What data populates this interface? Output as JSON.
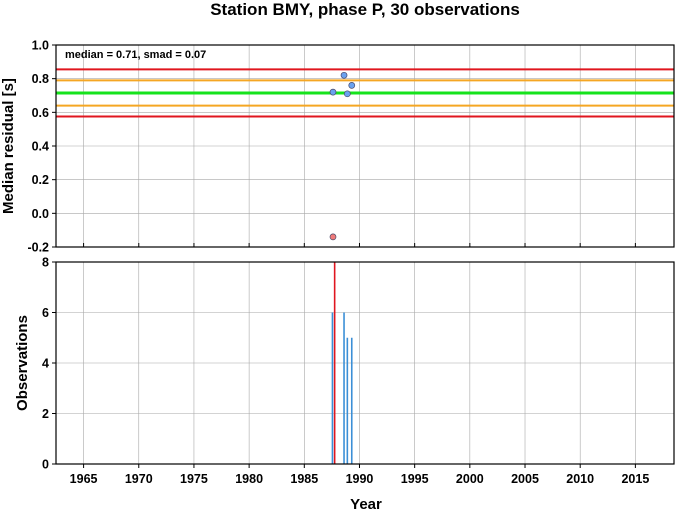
{
  "chart_data": [
    {
      "type": "scatter",
      "title": "Station BMY, phase P, 30 observations",
      "ylabel": "Median residual [s]",
      "xlabel": "",
      "annotation": "median = 0.71, smad = 0.07",
      "xlim": [
        1962.5,
        2018.5
      ],
      "ylim": [
        -0.2,
        1.0
      ],
      "yticks": [
        "-0.2",
        "0.0",
        "0.2",
        "0.4",
        "0.6",
        "0.8",
        "1.0"
      ],
      "grid": true,
      "reference_lines": [
        {
          "y": 0.855,
          "color": "#e0161f"
        },
        {
          "y": 0.79,
          "color": "#f5a623"
        },
        {
          "y": 0.715,
          "color": "#16e31c"
        },
        {
          "y": 0.64,
          "color": "#f5a623"
        },
        {
          "y": 0.575,
          "color": "#e0161f"
        }
      ],
      "series": [
        {
          "color": "#6aa2f0",
          "x": [
            1987.6,
            1988.6,
            1988.9,
            1989.3
          ],
          "y": [
            0.72,
            0.82,
            0.71,
            0.76
          ]
        },
        {
          "color": "#f07a7a",
          "x": [
            1987.6
          ],
          "y": [
            -0.14
          ]
        }
      ]
    },
    {
      "type": "bar",
      "title": "",
      "ylabel": "Observations",
      "xlabel": "Year",
      "xlim": [
        1962.5,
        2018.5
      ],
      "ylim": [
        0,
        8
      ],
      "xticks": [
        "1965",
        "1970",
        "1975",
        "1980",
        "1985",
        "1990",
        "1995",
        "2000",
        "2005",
        "2010",
        "2015"
      ],
      "yticks": [
        "0",
        "2",
        "4",
        "6",
        "8"
      ],
      "grid": true,
      "bars": [
        {
          "x": 1987.55,
          "value": 6,
          "color": "#3b8fd6"
        },
        {
          "x": 1987.75,
          "value": 8,
          "color": "#e0161f"
        },
        {
          "x": 1988.6,
          "value": 6,
          "color": "#3b8fd6"
        },
        {
          "x": 1988.9,
          "value": 5,
          "color": "#3b8fd6"
        },
        {
          "x": 1989.3,
          "value": 5,
          "color": "#3b8fd6"
        }
      ]
    }
  ]
}
